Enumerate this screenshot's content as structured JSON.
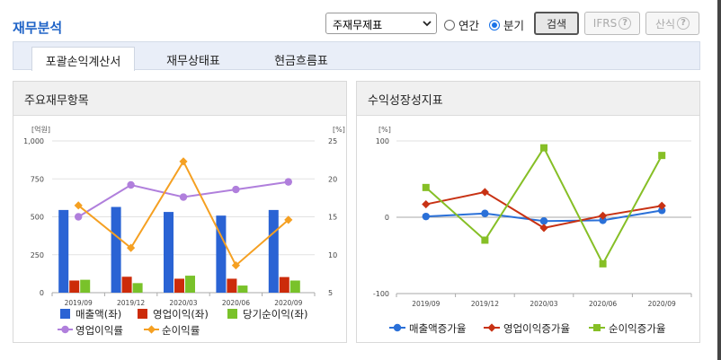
{
  "header": {
    "title": "재무분석",
    "select_value": "주재무제표",
    "period_options": [
      {
        "label": "연간",
        "selected": false
      },
      {
        "label": "분기",
        "selected": true
      }
    ],
    "search_label": "검색",
    "ifrs_label": "IFRS",
    "formula_label": "산식",
    "help_glyph": "?"
  },
  "tabs": [
    {
      "label": "포괄손익계산서",
      "active": true
    },
    {
      "label": "재무상태표",
      "active": false
    },
    {
      "label": "현금흐름표",
      "active": false
    }
  ],
  "left_panel": {
    "title": "주요재무항목",
    "chart_data": {
      "type": "bar",
      "categories": [
        "2019/09",
        "2019/12",
        "2020/03",
        "2020/06",
        "2020/09"
      ],
      "left_unit": "[억원]",
      "right_unit": "[%]",
      "left_ticks": [
        "0",
        "250",
        "500",
        "750",
        "1,000"
      ],
      "right_ticks": [
        "5",
        "10",
        "15",
        "20",
        "25"
      ],
      "ylim_left": [
        0,
        1000
      ],
      "ylim_right": [
        5,
        25
      ],
      "bar_series": [
        {
          "name": "매출액(좌)",
          "color": "#2a63d4",
          "values": [
            545,
            565,
            532,
            508,
            545
          ]
        },
        {
          "name": "영업이익(좌)",
          "color": "#cc2b0a",
          "values": [
            80,
            105,
            92,
            92,
            103
          ]
        },
        {
          "name": "당기순이익(좌)",
          "color": "#79c22a",
          "values": [
            85,
            63,
            112,
            47,
            80
          ]
        }
      ],
      "line_series": [
        {
          "name": "영업이익률",
          "color": "#b07fdc",
          "marker": "circle",
          "values": [
            15.0,
            19.2,
            17.6,
            18.6,
            19.6
          ]
        },
        {
          "name": "순이익률",
          "color": "#f5a022",
          "marker": "diamond",
          "values": [
            16.5,
            10.9,
            22.3,
            8.6,
            14.6
          ]
        }
      ]
    }
  },
  "right_panel": {
    "title": "수익성장성지표",
    "chart_data": {
      "type": "line",
      "categories": [
        "2019/09",
        "2019/12",
        "2020/03",
        "2020/06",
        "2020/09"
      ],
      "unit": "[%]",
      "ticks": [
        "-100",
        "0",
        "100"
      ],
      "ylim": [
        -100,
        100
      ],
      "series": [
        {
          "name": "매출액증가율",
          "color": "#2a70d8",
          "marker": "circle",
          "values": [
            1,
            5,
            -5,
            -4,
            9
          ]
        },
        {
          "name": "영업이익증가율",
          "color": "#c83214",
          "marker": "diamond",
          "values": [
            17,
            33,
            -14,
            2,
            15
          ]
        },
        {
          "name": "순이익증가율",
          "color": "#86bf26",
          "marker": "square",
          "values": [
            39,
            -30,
            91,
            -61,
            81
          ]
        }
      ]
    }
  }
}
